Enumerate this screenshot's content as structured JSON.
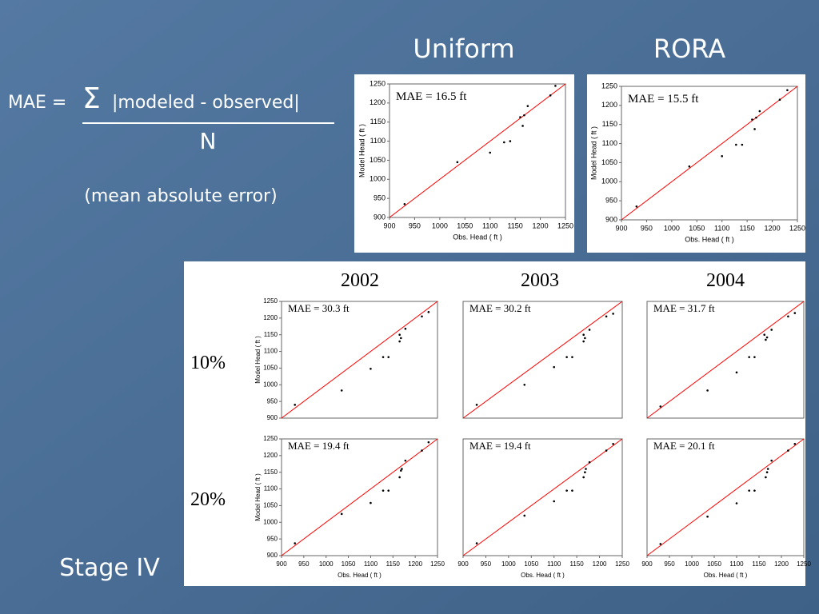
{
  "slide": {
    "uniform": "Uniform",
    "rora": "RORA",
    "formula_lhs": "MAE =",
    "sigma": "Σ",
    "formula_numerator": "|modeled - observed|",
    "formula_denominator": "N",
    "formula_note": "(mean absolute error)",
    "stage": "Stage IV",
    "years": [
      "2002",
      "2003",
      "2004"
    ],
    "rows": [
      "10%",
      "20%"
    ]
  },
  "chart_data": [
    {
      "type": "scatter",
      "annotation": "MAE = 16.5 ft",
      "x_label": "Obs. Head ( ft )",
      "y_label": "Model Head ( ft )",
      "xlim": [
        900,
        1250
      ],
      "ylim": [
        900,
        1250
      ],
      "xticks": [
        900,
        950,
        1000,
        1050,
        1100,
        1150,
        1200,
        1250
      ],
      "yticks": [
        900,
        950,
        1000,
        1050,
        1100,
        1150,
        1200,
        1250
      ],
      "color": "#000000",
      "line_color": "#ff0000",
      "x": [
        930,
        1035,
        1100,
        1128,
        1140,
        1160,
        1165,
        1168,
        1175,
        1220,
        1230
      ],
      "values": [
        935,
        1045,
        1070,
        1097,
        1100,
        1163,
        1140,
        1168,
        1192,
        1220,
        1245
      ]
    },
    {
      "type": "scatter",
      "annotation": "MAE = 15.5 ft",
      "x_label": "Obs. Head ( ft )",
      "y_label": "Model Head ( ft )",
      "xlim": [
        900,
        1250
      ],
      "ylim": [
        900,
        1250
      ],
      "xticks": [
        900,
        950,
        1000,
        1050,
        1100,
        1150,
        1200,
        1250
      ],
      "yticks": [
        900,
        950,
        1000,
        1050,
        1100,
        1150,
        1200,
        1250
      ],
      "color": "#000000",
      "line_color": "#ff0000",
      "x": [
        930,
        1035,
        1100,
        1128,
        1140,
        1160,
        1165,
        1168,
        1175,
        1215,
        1230
      ],
      "values": [
        935,
        1040,
        1067,
        1097,
        1097,
        1163,
        1138,
        1168,
        1185,
        1215,
        1240
      ]
    },
    {
      "type": "scatter",
      "annotation": "MAE = 30.3 ft",
      "y_label": "Model Head ( ft )",
      "xlim": [
        900,
        1250
      ],
      "ylim": [
        900,
        1250
      ],
      "yticks": [
        900,
        950,
        1000,
        1050,
        1100,
        1150,
        1200,
        1250
      ],
      "color": "#000000",
      "line_color": "#ff0000",
      "x": [
        930,
        1035,
        1100,
        1128,
        1140,
        1165,
        1168,
        1165,
        1178,
        1215,
        1230
      ],
      "values": [
        940,
        983,
        1048,
        1083,
        1083,
        1130,
        1140,
        1150,
        1168,
        1205,
        1218
      ]
    },
    {
      "type": "scatter",
      "annotation": "MAE = 30.2 ft",
      "xlim": [
        900,
        1250
      ],
      "ylim": [
        900,
        1250
      ],
      "color": "#000000",
      "line_color": "#ff0000",
      "x": [
        930,
        1035,
        1100,
        1128,
        1140,
        1165,
        1168,
        1165,
        1178,
        1215,
        1230
      ],
      "values": [
        940,
        1000,
        1053,
        1083,
        1083,
        1130,
        1140,
        1150,
        1165,
        1205,
        1213
      ]
    },
    {
      "type": "scatter",
      "annotation": "MAE = 31.7 ft",
      "xlim": [
        900,
        1250
      ],
      "ylim": [
        900,
        1250
      ],
      "color": "#000000",
      "line_color": "#ff0000",
      "x": [
        930,
        1035,
        1100,
        1128,
        1140,
        1165,
        1168,
        1162,
        1178,
        1215,
        1230
      ],
      "values": [
        935,
        983,
        1037,
        1083,
        1083,
        1135,
        1142,
        1150,
        1165,
        1205,
        1215
      ]
    },
    {
      "type": "scatter",
      "annotation": "MAE = 19.4 ft",
      "x_label": "Obs. Head ( ft )",
      "y_label": "Model Head ( ft )",
      "xlim": [
        900,
        1250
      ],
      "ylim": [
        900,
        1250
      ],
      "xticks": [
        900,
        950,
        1000,
        1050,
        1100,
        1150,
        1200,
        1250
      ],
      "yticks": [
        900,
        950,
        1000,
        1050,
        1100,
        1150,
        1200,
        1250
      ],
      "color": "#000000",
      "line_color": "#ff0000",
      "x": [
        930,
        1035,
        1100,
        1128,
        1140,
        1165,
        1168,
        1170,
        1178,
        1215,
        1230
      ],
      "values": [
        937,
        1025,
        1058,
        1095,
        1095,
        1135,
        1155,
        1160,
        1185,
        1215,
        1240
      ]
    },
    {
      "type": "scatter",
      "annotation": "MAE = 19.4 ft",
      "x_label": "Obs. Head ( ft )",
      "xlim": [
        900,
        1250
      ],
      "ylim": [
        900,
        1250
      ],
      "xticks": [
        900,
        950,
        1000,
        1050,
        1100,
        1150,
        1200,
        1250
      ],
      "color": "#000000",
      "line_color": "#ff0000",
      "x": [
        930,
        1035,
        1100,
        1128,
        1140,
        1165,
        1168,
        1170,
        1178,
        1215,
        1230
      ],
      "values": [
        937,
        1020,
        1063,
        1095,
        1095,
        1135,
        1150,
        1160,
        1180,
        1215,
        1235
      ]
    },
    {
      "type": "scatter",
      "annotation": "MAE = 20.1 ft",
      "x_label": "Obs. Head ( ft )",
      "xlim": [
        900,
        1250
      ],
      "ylim": [
        900,
        1250
      ],
      "xticks": [
        900,
        950,
        1000,
        1050,
        1100,
        1150,
        1200,
        1250
      ],
      "color": "#000000",
      "line_color": "#ff0000",
      "x": [
        930,
        1035,
        1100,
        1128,
        1140,
        1165,
        1168,
        1170,
        1178,
        1215,
        1230
      ],
      "values": [
        935,
        1017,
        1057,
        1095,
        1095,
        1135,
        1150,
        1160,
        1185,
        1215,
        1235
      ]
    }
  ]
}
